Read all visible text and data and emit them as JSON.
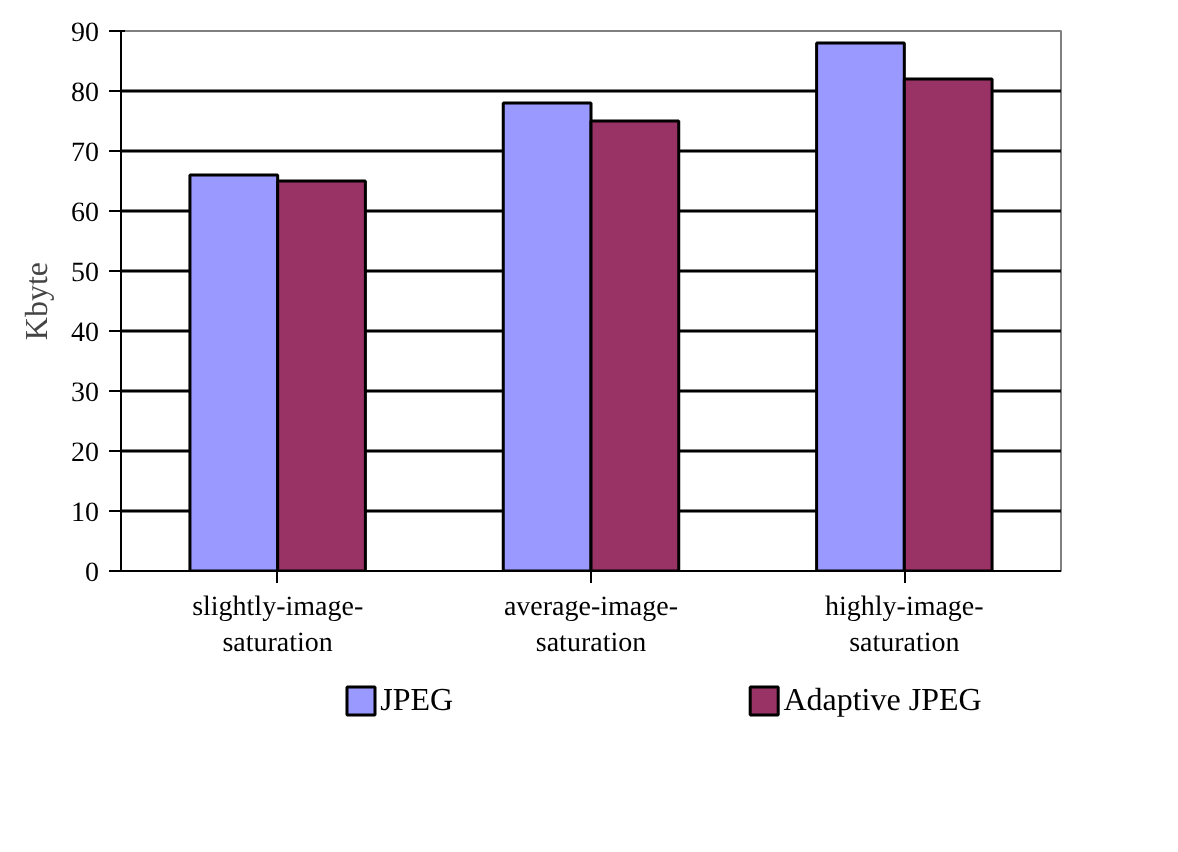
{
  "chart_data": {
    "type": "bar",
    "ylabel": "Kbyte",
    "categories": [
      "slightly-image-\nsaturation",
      "average-image-\nsaturation",
      "highly-image-\nsaturation"
    ],
    "series": [
      {
        "name": "JPEG",
        "color": "#9999ff",
        "values": [
          66,
          78,
          88
        ]
      },
      {
        "name": "Adaptive JPEG",
        "color": "#993366",
        "values": [
          65,
          75,
          82
        ]
      }
    ],
    "ylim": [
      0,
      90
    ],
    "yticks": [
      0,
      10,
      20,
      30,
      40,
      50,
      60,
      70,
      80,
      90
    ],
    "grid": "y",
    "legend": "bottom"
  }
}
